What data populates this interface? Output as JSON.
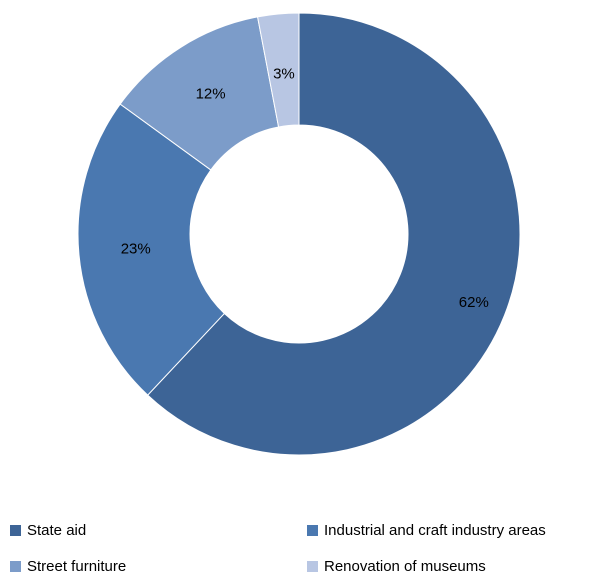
{
  "chart_data": {
    "type": "pie",
    "subtype": "donut",
    "title": "",
    "series": [
      {
        "categories": [
          "State aid",
          "Industrial and craft industry areas",
          "Street furniture",
          "Renovation of museums"
        ],
        "values": [
          62,
          23,
          12,
          3
        ],
        "labels": [
          "62%",
          "23%",
          "12%",
          "3%"
        ]
      }
    ],
    "colors": [
      "#3d6496",
      "#4a78b0",
      "#7c9cc9",
      "#b8c6e3"
    ],
    "legend": {
      "placement": "bottom",
      "entries": [
        "State aid",
        "Industrial and craft industry areas",
        "Street furniture",
        "Renovation of museums"
      ]
    }
  }
}
